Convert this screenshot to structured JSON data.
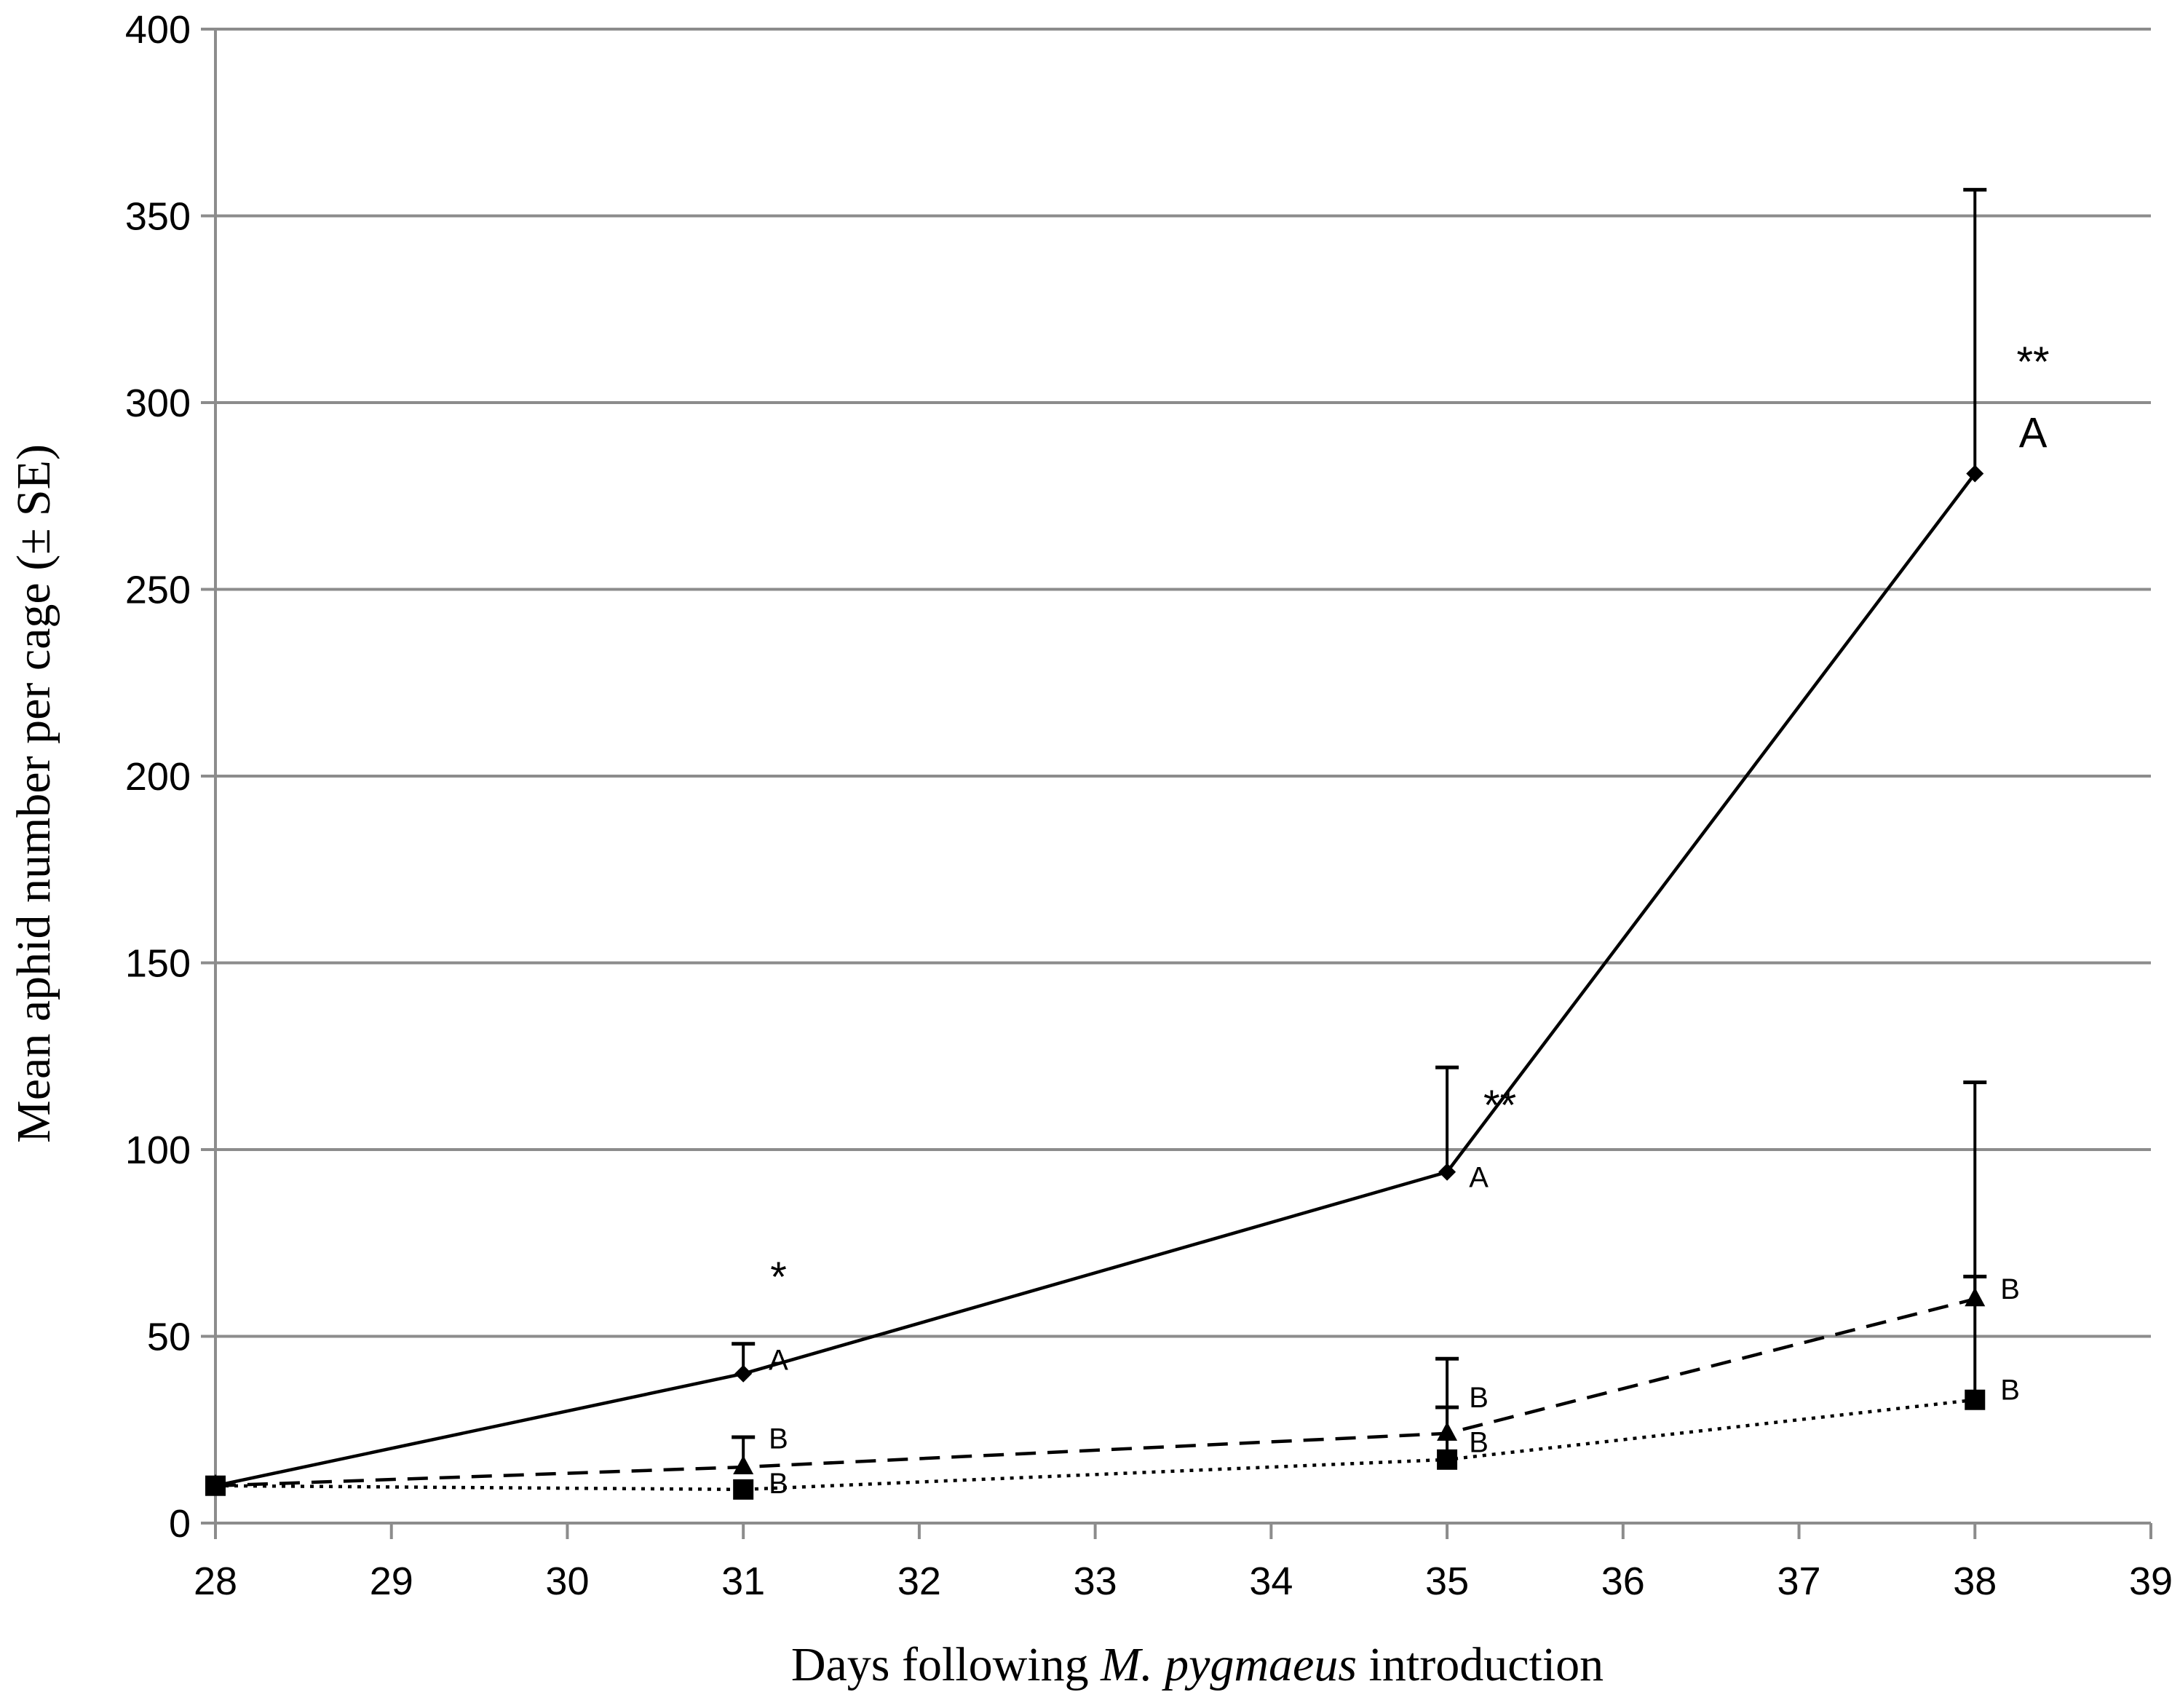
{
  "chart_data": {
    "type": "line",
    "title": "",
    "xlabel_prefix": "Days following ",
    "xlabel_italic": "M. pygmaeus",
    "xlabel_suffix": " introduction",
    "ylabel": "Mean aphid number per cage (± SE)",
    "xlim": [
      28,
      39
    ],
    "ylim": [
      0,
      400
    ],
    "xticks": [
      28,
      29,
      30,
      31,
      32,
      33,
      34,
      35,
      36,
      37,
      38,
      39
    ],
    "yticks": [
      0,
      50,
      100,
      150,
      200,
      250,
      300,
      350,
      400
    ],
    "grid": "horizontal",
    "series": [
      {
        "marker": "diamond",
        "line_style": "solid",
        "color": "#000000",
        "x": [
          28,
          31,
          35,
          38
        ],
        "y": [
          10,
          40,
          94,
          281
        ],
        "se_upper": [
          null,
          48,
          122,
          357
        ]
      },
      {
        "marker": "triangle",
        "line_style": "dashed",
        "color": "#000000",
        "x": [
          28,
          31,
          35,
          38
        ],
        "y": [
          10,
          15,
          24,
          60
        ],
        "se_upper": [
          null,
          23,
          44,
          118
        ]
      },
      {
        "marker": "square",
        "line_style": "dotted",
        "color": "#000000",
        "x": [
          28,
          31,
          35,
          38
        ],
        "y": [
          10,
          9,
          17,
          33
        ],
        "se_upper": [
          null,
          null,
          31,
          66
        ]
      }
    ],
    "annotations": [
      {
        "text": "*",
        "x": 31.2,
        "y": 62,
        "kind": "star"
      },
      {
        "text": "A",
        "x": 31.2,
        "y": 41,
        "kind": "letter-sm"
      },
      {
        "text": "B",
        "x": 31.2,
        "y": 20,
        "kind": "letter-sm"
      },
      {
        "text": "B",
        "x": 31.2,
        "y": 8,
        "kind": "letter-sm"
      },
      {
        "text": "**",
        "x": 35.3,
        "y": 108,
        "kind": "star"
      },
      {
        "text": "A",
        "x": 35.18,
        "y": 90,
        "kind": "letter-sm"
      },
      {
        "text": "B",
        "x": 35.18,
        "y": 31,
        "kind": "letter-sm"
      },
      {
        "text": "B",
        "x": 35.18,
        "y": 19,
        "kind": "letter-sm"
      },
      {
        "text": "**",
        "x": 38.33,
        "y": 307,
        "kind": "star"
      },
      {
        "text": "A",
        "x": 38.33,
        "y": 288,
        "kind": "letter-lg"
      },
      {
        "text": "B",
        "x": 38.2,
        "y": 60,
        "kind": "letter-sm"
      },
      {
        "text": "B",
        "x": 38.2,
        "y": 33,
        "kind": "letter-sm"
      }
    ]
  }
}
